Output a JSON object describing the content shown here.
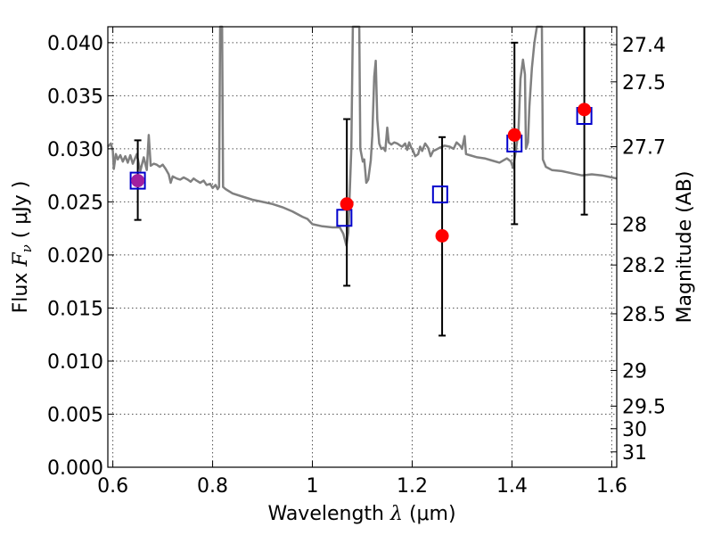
{
  "chart_data": {
    "type": "scatter",
    "xlabel_text": "Wavelength",
    "xlabel_symbol": "λ",
    "xlabel_unit": "(μm)",
    "ylabel_text": "Flux",
    "ylabel_symbol": "F",
    "ylabel_subscript": "ν",
    "ylabel_unit": "( μJy )",
    "y2label": "Magnitude (AB)",
    "xlim": [
      0.59,
      1.61
    ],
    "ylim": [
      0.0,
      0.0415
    ],
    "xticks": [
      0.6,
      0.8,
      1.0,
      1.2,
      1.4,
      1.6
    ],
    "xtick_labels": [
      "0.6",
      "0.8",
      "1",
      "1.2",
      "1.4",
      "1.6"
    ],
    "yticks": [
      0.0,
      0.005,
      0.01,
      0.015,
      0.02,
      0.025,
      0.03,
      0.035,
      0.04
    ],
    "ytick_labels": [
      "0.000",
      "0.005",
      "0.010",
      "0.015",
      "0.020",
      "0.025",
      "0.030",
      "0.035",
      "0.040"
    ],
    "y2ticks": [
      {
        "label": "27.4",
        "mag": 27.4
      },
      {
        "label": "27.5",
        "mag": 27.5
      },
      {
        "label": "27.7",
        "mag": 27.7
      },
      {
        "label": "28",
        "mag": 28.0
      },
      {
        "label": "28.2",
        "mag": 28.2
      },
      {
        "label": "28.5",
        "mag": 28.5
      },
      {
        "label": "29",
        "mag": 29.0
      },
      {
        "label": "29.5",
        "mag": 29.5
      },
      {
        "label": "30",
        "mag": 30.0
      },
      {
        "label": "31",
        "mag": 31.0
      }
    ],
    "grid": true,
    "observed": [
      {
        "x": 0.65,
        "y": 0.027,
        "yerr_low": 0.0233,
        "yerr_high": 0.0308
      },
      {
        "x": 1.069,
        "y": 0.0248,
        "yerr_low": 0.0171,
        "yerr_high": 0.0328
      },
      {
        "x": 1.26,
        "y": 0.0218,
        "yerr_low": 0.0124,
        "yerr_high": 0.0311
      },
      {
        "x": 1.405,
        "y": 0.0313,
        "yerr_low": 0.0229,
        "yerr_high": 0.04
      },
      {
        "x": 1.545,
        "y": 0.0337,
        "yerr_low": 0.0238,
        "yerr_high": 0.043
      }
    ],
    "model_points": [
      {
        "x": 0.65,
        "y": 0.027
      },
      {
        "x": 1.064,
        "y": 0.0235
      },
      {
        "x": 1.256,
        "y": 0.0257
      },
      {
        "x": 1.405,
        "y": 0.0305
      },
      {
        "x": 1.545,
        "y": 0.0331
      }
    ],
    "spectrum": [
      [
        0.59,
        0.0302
      ],
      [
        0.596,
        0.0305
      ],
      [
        0.6,
        0.0298
      ],
      [
        0.602,
        0.0281
      ],
      [
        0.606,
        0.0295
      ],
      [
        0.61,
        0.029
      ],
      [
        0.615,
        0.0294
      ],
      [
        0.62,
        0.0288
      ],
      [
        0.625,
        0.0293
      ],
      [
        0.63,
        0.0287
      ],
      [
        0.635,
        0.0294
      ],
      [
        0.64,
        0.0286
      ],
      [
        0.648,
        0.0295
      ],
      [
        0.655,
        0.0279
      ],
      [
        0.662,
        0.0292
      ],
      [
        0.668,
        0.028
      ],
      [
        0.672,
        0.0313
      ],
      [
        0.676,
        0.0284
      ],
      [
        0.682,
        0.0286
      ],
      [
        0.688,
        0.0285
      ],
      [
        0.694,
        0.0283
      ],
      [
        0.7,
        0.0285
      ],
      [
        0.706,
        0.0281
      ],
      [
        0.712,
        0.0276
      ],
      [
        0.716,
        0.0268
      ],
      [
        0.72,
        0.0274
      ],
      [
        0.728,
        0.0272
      ],
      [
        0.735,
        0.0271
      ],
      [
        0.742,
        0.0273
      ],
      [
        0.75,
        0.0271
      ],
      [
        0.756,
        0.0269
      ],
      [
        0.762,
        0.0272
      ],
      [
        0.768,
        0.027
      ],
      [
        0.775,
        0.0268
      ],
      [
        0.782,
        0.027
      ],
      [
        0.788,
        0.0266
      ],
      [
        0.795,
        0.0267
      ],
      [
        0.8,
        0.0263
      ],
      [
        0.806,
        0.0266
      ],
      [
        0.81,
        0.0262
      ],
      [
        0.813,
        0.0264
      ],
      [
        0.815,
        0.042
      ],
      [
        0.819,
        0.042
      ],
      [
        0.821,
        0.0264
      ],
      [
        0.826,
        0.0262
      ],
      [
        0.84,
        0.0258
      ],
      [
        0.86,
        0.0255
      ],
      [
        0.88,
        0.0252
      ],
      [
        0.9,
        0.025
      ],
      [
        0.92,
        0.0248
      ],
      [
        0.94,
        0.0245
      ],
      [
        0.96,
        0.0241
      ],
      [
        0.98,
        0.0236
      ],
      [
        0.99,
        0.0234
      ],
      [
        1.0,
        0.0229
      ],
      [
        1.02,
        0.0227
      ],
      [
        1.04,
        0.0226
      ],
      [
        1.055,
        0.0226
      ],
      [
        1.062,
        0.022
      ],
      [
        1.068,
        0.0209
      ],
      [
        1.072,
        0.0221
      ],
      [
        1.078,
        0.03
      ],
      [
        1.081,
        0.042
      ],
      [
        1.094,
        0.042
      ],
      [
        1.096,
        0.03
      ],
      [
        1.101,
        0.0288
      ],
      [
        1.104,
        0.029
      ],
      [
        1.108,
        0.0268
      ],
      [
        1.112,
        0.0271
      ],
      [
        1.117,
        0.0289
      ],
      [
        1.12,
        0.0312
      ],
      [
        1.124,
        0.0368
      ],
      [
        1.127,
        0.0383
      ],
      [
        1.13,
        0.0328
      ],
      [
        1.134,
        0.0305
      ],
      [
        1.138,
        0.03
      ],
      [
        1.142,
        0.0301
      ],
      [
        1.146,
        0.0298
      ],
      [
        1.15,
        0.032
      ],
      [
        1.153,
        0.0306
      ],
      [
        1.158,
        0.0304
      ],
      [
        1.164,
        0.0306
      ],
      [
        1.17,
        0.0305
      ],
      [
        1.176,
        0.0303
      ],
      [
        1.18,
        0.0302
      ],
      [
        1.186,
        0.0305
      ],
      [
        1.19,
        0.0299
      ],
      [
        1.194,
        0.0306
      ],
      [
        1.198,
        0.0301
      ],
      [
        1.202,
        0.0298
      ],
      [
        1.206,
        0.0293
      ],
      [
        1.212,
        0.0295
      ],
      [
        1.216,
        0.0302
      ],
      [
        1.22,
        0.0298
      ],
      [
        1.226,
        0.0305
      ],
      [
        1.232,
        0.0301
      ],
      [
        1.237,
        0.0293
      ],
      [
        1.242,
        0.0298
      ],
      [
        1.247,
        0.0299
      ],
      [
        1.255,
        0.0301
      ],
      [
        1.265,
        0.0303
      ],
      [
        1.275,
        0.0302
      ],
      [
        1.283,
        0.03
      ],
      [
        1.289,
        0.0306
      ],
      [
        1.296,
        0.0303
      ],
      [
        1.3,
        0.03
      ],
      [
        1.305,
        0.0312
      ],
      [
        1.308,
        0.0295
      ],
      [
        1.315,
        0.0294
      ],
      [
        1.33,
        0.0292
      ],
      [
        1.345,
        0.0291
      ],
      [
        1.36,
        0.0289
      ],
      [
        1.375,
        0.0287
      ],
      [
        1.39,
        0.0291
      ],
      [
        1.398,
        0.0288
      ],
      [
        1.402,
        0.0282
      ],
      [
        1.407,
        0.0296
      ],
      [
        1.413,
        0.0316
      ],
      [
        1.417,
        0.0366
      ],
      [
        1.422,
        0.0384
      ],
      [
        1.426,
        0.037
      ],
      [
        1.428,
        0.03
      ],
      [
        1.432,
        0.0306
      ],
      [
        1.435,
        0.034
      ],
      [
        1.44,
        0.0376
      ],
      [
        1.445,
        0.04
      ],
      [
        1.45,
        0.042
      ],
      [
        1.46,
        0.042
      ],
      [
        1.462,
        0.029
      ],
      [
        1.468,
        0.0283
      ],
      [
        1.48,
        0.028
      ],
      [
        1.5,
        0.0279
      ],
      [
        1.52,
        0.0277
      ],
      [
        1.54,
        0.0275
      ],
      [
        1.56,
        0.0276
      ],
      [
        1.58,
        0.0275
      ],
      [
        1.6,
        0.0273
      ],
      [
        1.61,
        0.0272
      ]
    ],
    "colors": {
      "spectrum": "#808080",
      "observed": "#ff0000",
      "model": "#0000cc",
      "errorbar": "#000000",
      "overlap": "#a020a0"
    }
  }
}
